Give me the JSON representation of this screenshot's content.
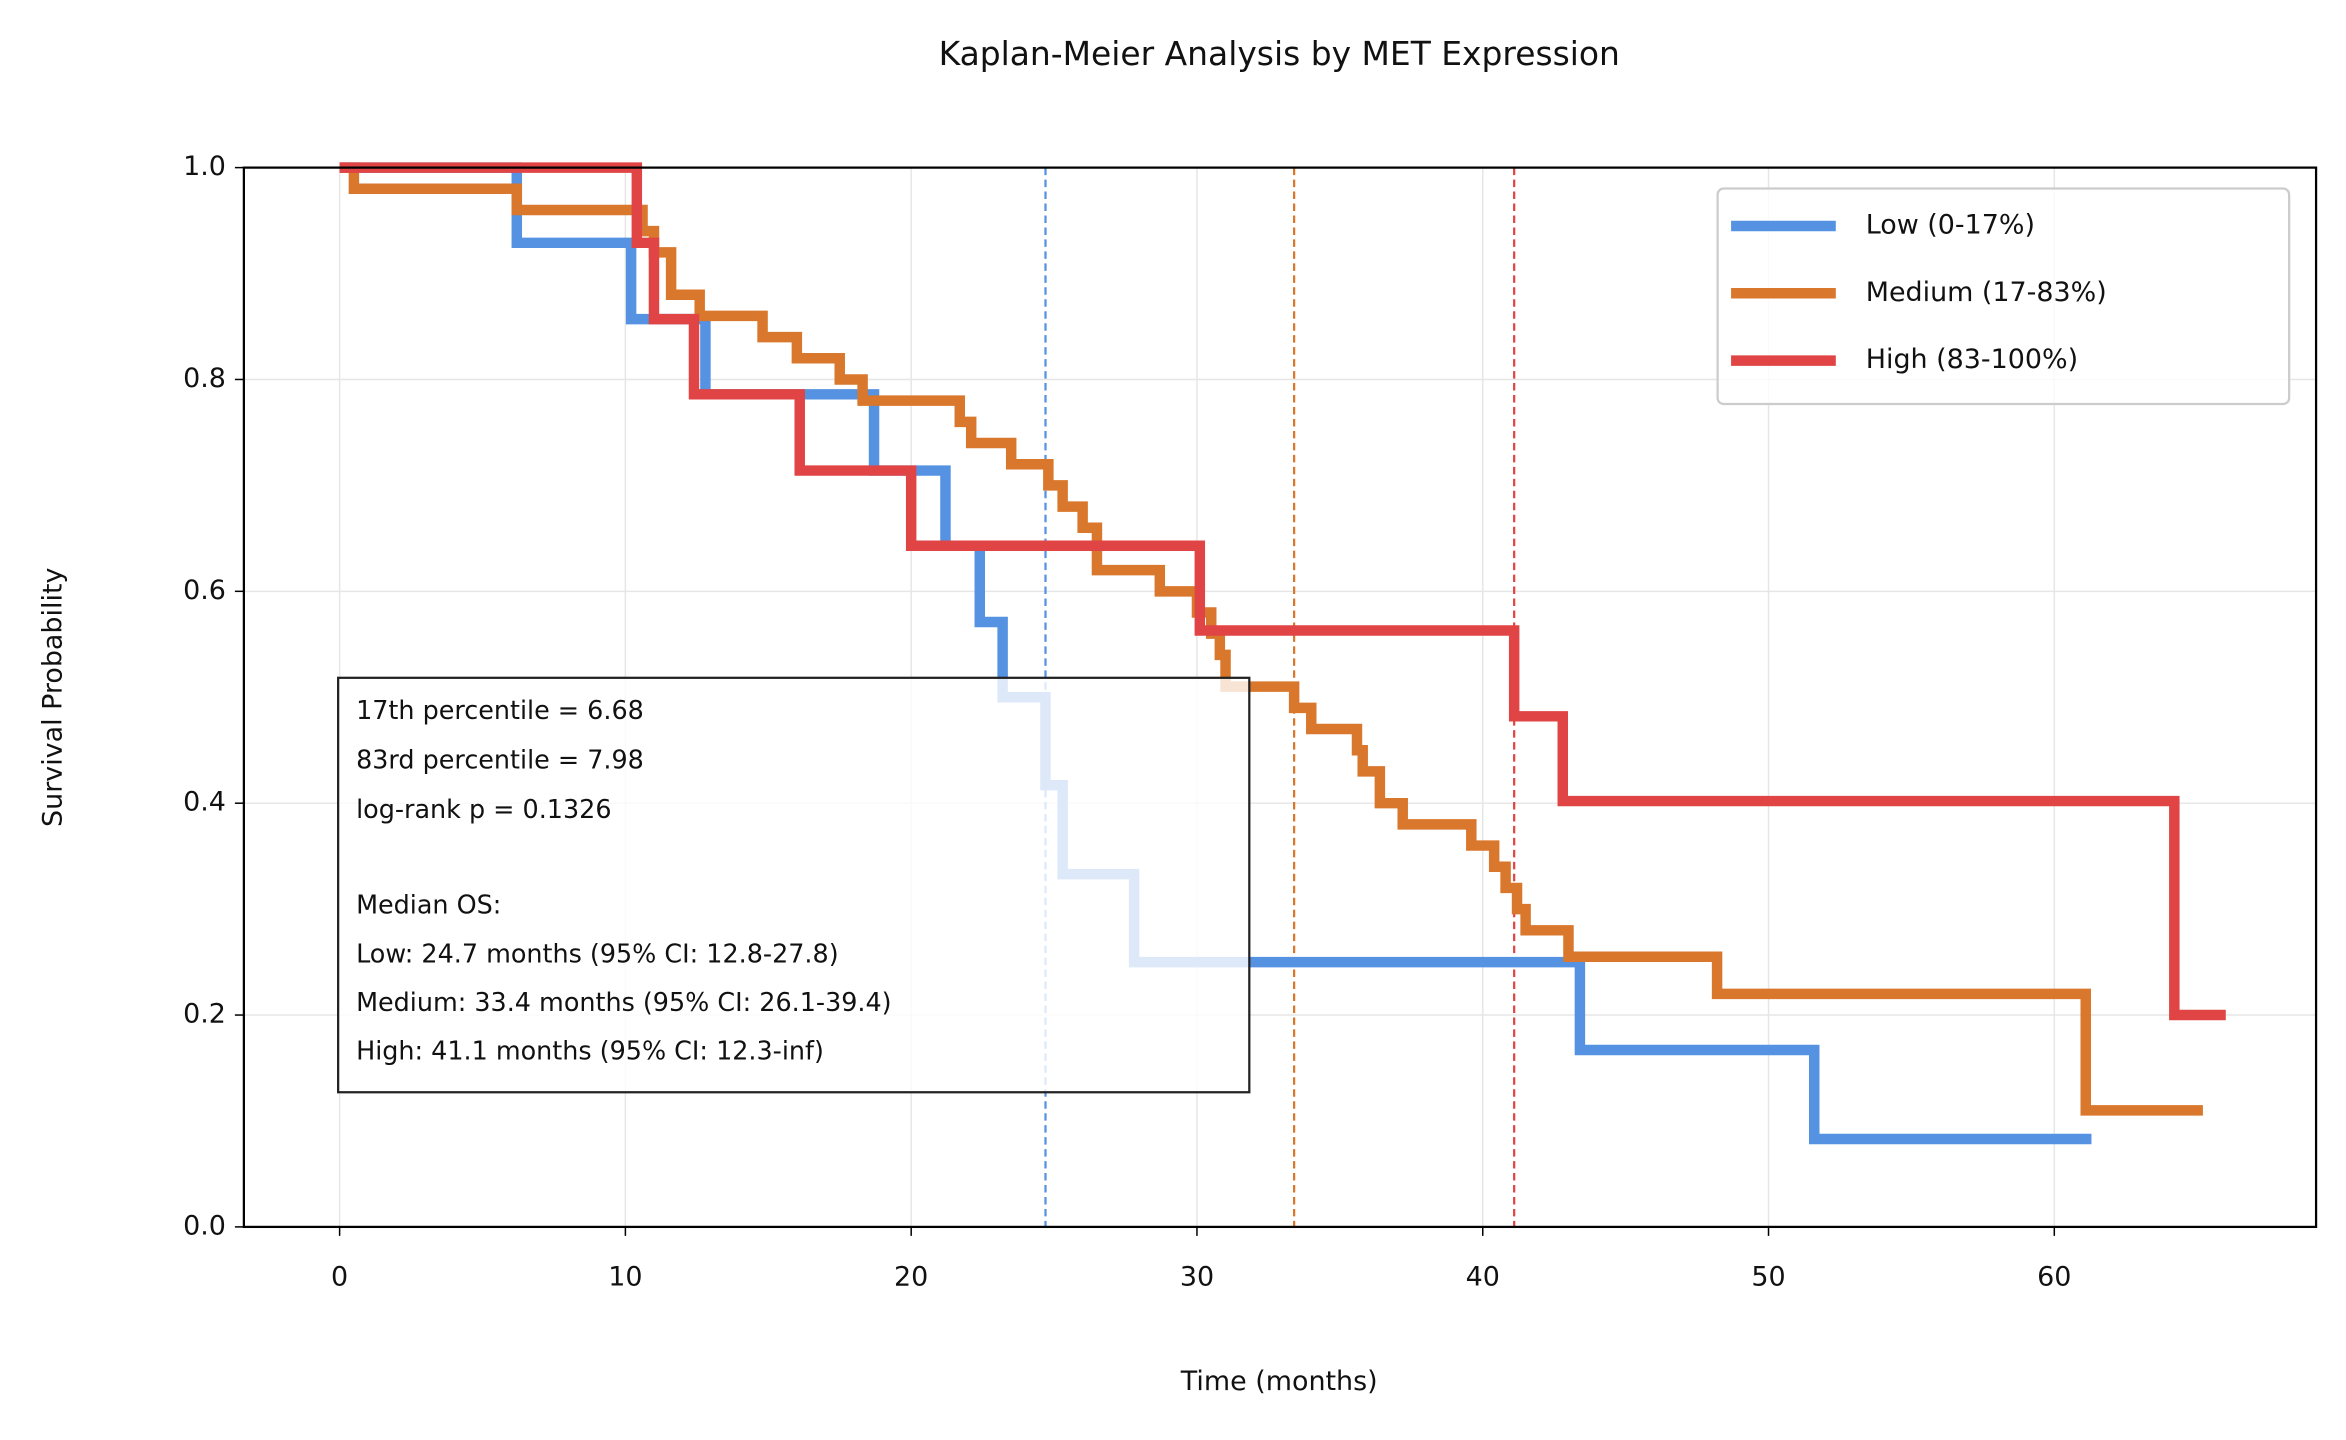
{
  "chart_data": {
    "type": "step",
    "title": "Kaplan-Meier Analysis by MET Expression",
    "x_label": "Time (months)",
    "y_label": "Survival Probability",
    "xlim": [
      -3.35,
      69.16
    ],
    "ylim": [
      0,
      1
    ],
    "xticks": [
      0,
      10,
      20,
      30,
      40,
      50,
      60
    ],
    "yticks": [
      {
        "value": 0,
        "label": "0.0"
      },
      0.2,
      0.4,
      0.6,
      0.8,
      {
        "value": 1,
        "label": "1.0"
      }
    ],
    "grid": true,
    "legend": "upper right",
    "series": [
      {
        "name": "Low (0-17%)",
        "color": "#5592e2",
        "median": 24.7,
        "x": [
          0,
          6.2,
          10.2,
          12.8,
          18.7,
          21.2,
          22.4,
          23.2,
          24.7,
          25.3,
          27.8,
          43.4,
          51.6,
          61.3
        ],
        "values": [
          1,
          0.929,
          0.857,
          0.786,
          0.714,
          0.643,
          0.571,
          0.5,
          0.417,
          0.333,
          0.25,
          0.167,
          0.083,
          0.083
        ]
      },
      {
        "name": "Medium (17-83%)",
        "color": "#d9772c",
        "median": 33.4,
        "x": [
          0,
          0.5,
          6.2,
          10.6,
          11.0,
          11.6,
          12.6,
          14.8,
          16.0,
          17.5,
          18.3,
          21.7,
          22.1,
          23.5,
          24.8,
          25.3,
          26.0,
          26.5,
          28.7,
          30.0,
          30.5,
          30.8,
          31.0,
          33.4,
          34.0,
          35.6,
          35.8,
          36.4,
          37.2,
          39.6,
          40.4,
          40.8,
          41.2,
          41.5,
          43.0,
          48.2,
          61.1,
          65.2
        ],
        "values": [
          1,
          0.98,
          0.96,
          0.94,
          0.92,
          0.88,
          0.86,
          0.84,
          0.82,
          0.8,
          0.78,
          0.76,
          0.74,
          0.72,
          0.7,
          0.68,
          0.66,
          0.62,
          0.6,
          0.58,
          0.56,
          0.54,
          0.51,
          0.49,
          0.47,
          0.45,
          0.43,
          0.4,
          0.38,
          0.36,
          0.34,
          0.32,
          0.3,
          0.28,
          0.255,
          0.22,
          0.11,
          0.11
        ]
      },
      {
        "name": "High (83-100%)",
        "color": "#e04444",
        "median": 41.1,
        "x": [
          0,
          10.4,
          11.0,
          12.4,
          16.1,
          20.0,
          30.1,
          41.1,
          42.8,
          64.2,
          66.0
        ],
        "values": [
          1,
          0.929,
          0.857,
          0.786,
          0.714,
          0.643,
          0.563,
          0.482,
          0.402,
          0.2,
          0.2
        ]
      }
    ],
    "stats_box": {
      "lines": [
        "17th percentile = 6.68",
        "83rd percentile = 7.98",
        "log-rank p = 0.1326"
      ],
      "median_lines": [
        "Median OS:",
        "Low: 24.7 months (95% CI: 12.8-27.8)",
        "Medium: 33.4 months (95% CI: 26.1-39.4)",
        "High: 41.1 months (95% CI: 12.3-inf)"
      ]
    }
  }
}
